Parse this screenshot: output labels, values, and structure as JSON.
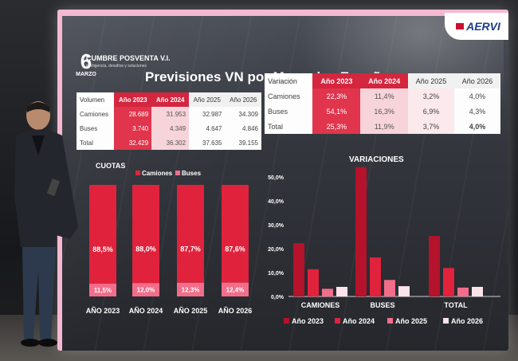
{
  "header": {
    "event_day": "6",
    "event_month": "MARZO",
    "event_name": "CUMBRE POSVENTA V.I.",
    "event_tagline": "Inteligencia, desafíos y soluciones",
    "brand": "AERVI"
  },
  "slide": {
    "title": "Previsiones VN por Mercados España"
  },
  "volume_table": {
    "columns": [
      "Volumen",
      "Año 2023",
      "Año 2024",
      "Año 2025",
      "Año 2026"
    ],
    "rows": [
      {
        "label": "Camiones",
        "values": [
          "28.689",
          "31.953",
          "32.987",
          "34.309"
        ]
      },
      {
        "label": "Buses",
        "values": [
          "3.740",
          "4.349",
          "4.647",
          "4.846"
        ]
      },
      {
        "label": "Total",
        "values": [
          "32.429",
          "36.302",
          "37.635",
          "39.155"
        ]
      }
    ]
  },
  "variation_table": {
    "columns": [
      "Variación",
      "Año 2023",
      "Año 2024",
      "Año 2025",
      "Año 2026"
    ],
    "rows": [
      {
        "label": "Camiones",
        "values": [
          "22,3%",
          "11,4%",
          "3,2%",
          "4,0%"
        ]
      },
      {
        "label": "Buses",
        "values": [
          "54,1%",
          "16,3%",
          "6,9%",
          "4,3%"
        ]
      },
      {
        "label": "Total",
        "values": [
          "25,3%",
          "11,9%",
          "3,7%",
          "4,0%"
        ]
      }
    ]
  },
  "colors": {
    "accent": "#e1223c",
    "dark_red": "#b5122b",
    "pink": "#f26d8a",
    "light_pink": "#fbe3ea"
  },
  "chart_data": [
    {
      "type": "bar",
      "title": "CUOTAS",
      "categories": [
        "AÑO 2023",
        "AÑO 2024",
        "AÑO 2025",
        "AÑO 2026"
      ],
      "series": [
        {
          "name": "Camiones",
          "values": [
            88.5,
            88.0,
            87.7,
            87.6
          ],
          "labels": [
            "88,5%",
            "88,0%",
            "87,7%",
            "87,6%"
          ]
        },
        {
          "name": "Buses",
          "values": [
            11.5,
            12.0,
            12.3,
            12.4
          ],
          "labels": [
            "11,5%",
            "12,0%",
            "12,3%",
            "12,4%"
          ]
        }
      ],
      "stacked": true,
      "legend_position": "top"
    },
    {
      "type": "bar",
      "title": "VARIACIONES",
      "categories": [
        "CAMIONES",
        "BUSES",
        "TOTAL"
      ],
      "series": [
        {
          "name": "Año 2023",
          "values": [
            22.3,
            54.1,
            25.3
          ]
        },
        {
          "name": "Año 2024",
          "values": [
            11.4,
            16.3,
            11.9
          ]
        },
        {
          "name": "Año 2025",
          "values": [
            3.2,
            6.9,
            3.7
          ]
        },
        {
          "name": "Año 2026",
          "values": [
            4.0,
            4.3,
            4.0
          ]
        }
      ],
      "yticks": [
        "0,0%",
        "10,0%",
        "20,0%",
        "30,0%",
        "40,0%",
        "50,0%"
      ],
      "ylim": [
        0,
        50
      ],
      "grid": false,
      "legend_position": "bottom"
    }
  ]
}
